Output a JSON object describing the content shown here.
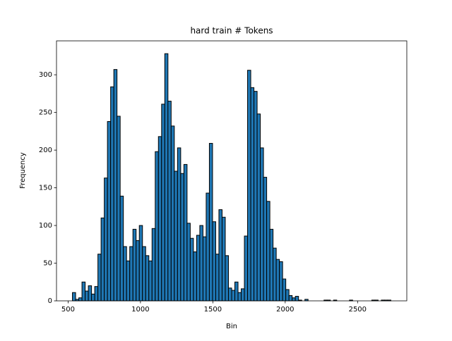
{
  "chart_data": {
    "type": "histogram",
    "title": "hard train # Tokens",
    "xlabel": "Bin",
    "ylabel": "Frequency",
    "bins": [
      530,
      552,
      574,
      596,
      618,
      640,
      662,
      684,
      706,
      728,
      750,
      772,
      794,
      816,
      838,
      860,
      882,
      904,
      926,
      948,
      970,
      992,
      1014,
      1036,
      1058,
      1080,
      1102,
      1124,
      1146,
      1168,
      1190,
      1212,
      1234,
      1256,
      1278,
      1300,
      1322,
      1344,
      1366,
      1388,
      1410,
      1432,
      1454,
      1476,
      1498,
      1520,
      1542,
      1564,
      1586,
      1608,
      1630,
      1652,
      1674,
      1696,
      1718,
      1740,
      1762,
      1784,
      1806,
      1828,
      1850,
      1872,
      1894,
      1916,
      1938,
      1960,
      1982,
      2004,
      2026,
      2048,
      2070,
      2092,
      2114,
      2136,
      2158,
      2180,
      2202,
      2224,
      2246,
      2268,
      2290,
      2312,
      2334,
      2356,
      2378,
      2400,
      2422,
      2444,
      2466,
      2488,
      2510,
      2532,
      2554,
      2576,
      2598,
      2620,
      2642,
      2664,
      2686,
      2708,
      2730
    ],
    "counts": [
      11,
      2,
      4,
      25,
      13,
      20,
      9,
      19,
      62,
      110,
      163,
      238,
      284,
      307,
      245,
      139,
      72,
      53,
      72,
      95,
      80,
      100,
      72,
      60,
      53,
      96,
      198,
      218,
      261,
      328,
      265,
      232,
      172,
      203,
      169,
      181,
      103,
      83,
      65,
      87,
      100,
      85,
      143,
      209,
      105,
      62,
      121,
      111,
      60,
      17,
      14,
      25,
      11,
      16,
      86,
      306,
      283,
      278,
      248,
      203,
      164,
      132,
      95,
      70,
      55,
      52,
      29,
      15,
      7,
      4,
      6,
      1,
      0,
      2,
      0,
      0,
      0,
      0,
      0,
      1,
      1,
      0,
      1,
      0,
      0,
      0,
      0,
      1,
      0,
      0,
      0,
      0,
      0,
      0,
      1,
      1,
      0,
      1,
      1,
      1
    ],
    "color": "#1f77b4",
    "edgecolor": "#000000",
    "xlim": [
      420,
      2840
    ],
    "xticks": [
      500,
      1000,
      1500,
      2000,
      2500
    ],
    "ylim": [
      0,
      345
    ],
    "yticks": [
      0,
      50,
      100,
      150,
      200,
      250,
      300
    ]
  }
}
